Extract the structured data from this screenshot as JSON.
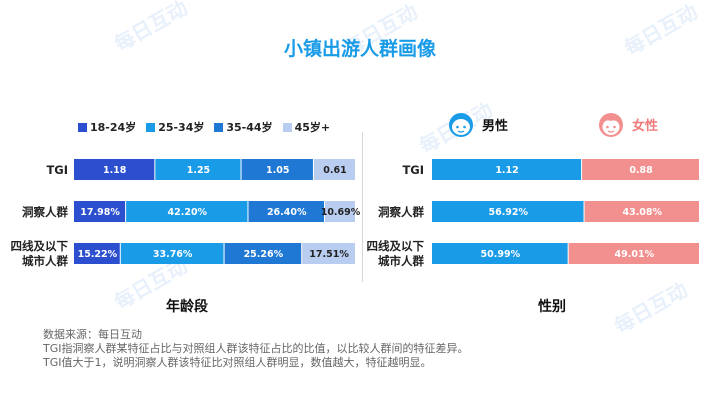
{
  "title": "小镇出游人群画像",
  "colors": {
    "age": [
      "#2b4fcf",
      "#1a9be8",
      "#1f78d4",
      "#b9cdf0"
    ],
    "male": "#1a9be8",
    "female": "#f28f8f",
    "title": "#1a9be8"
  },
  "chart_data": [
    {
      "type": "bar",
      "stacked": true,
      "orientation": "horizontal",
      "xlabel": "年龄段",
      "categories": [
        "TGI",
        "洞察人群",
        "四线及以下城市人群"
      ],
      "legend": [
        "18-24岁",
        "25-34岁",
        "35-44岁",
        "45岁+"
      ],
      "series": [
        {
          "name": "18-24岁",
          "values": [
            1.18,
            17.98,
            15.22
          ],
          "labels": [
            "1.18",
            "17.98%",
            "15.22%"
          ]
        },
        {
          "name": "25-34岁",
          "values": [
            1.25,
            42.2,
            33.76
          ],
          "labels": [
            "1.25",
            "42.20%",
            "33.76%"
          ]
        },
        {
          "name": "35-44岁",
          "values": [
            1.05,
            26.4,
            25.26
          ],
          "labels": [
            "1.05",
            "26.40%",
            "25.26%"
          ]
        },
        {
          "name": "45岁+",
          "values": [
            0.61,
            10.69,
            17.51
          ],
          "labels": [
            "0.61",
            "10.69%",
            "17.51%"
          ]
        }
      ]
    },
    {
      "type": "bar",
      "stacked": true,
      "orientation": "horizontal",
      "xlabel": "性别",
      "categories": [
        "TGI",
        "洞察人群",
        "四线及以下城市人群"
      ],
      "legend": [
        "男性",
        "女性"
      ],
      "series": [
        {
          "name": "男性",
          "values": [
            1.12,
            56.92,
            50.99
          ],
          "labels": [
            "1.12",
            "56.92%",
            "50.99%"
          ]
        },
        {
          "name": "女性",
          "values": [
            0.88,
            43.08,
            49.01
          ],
          "labels": [
            "0.88",
            "43.08%",
            "49.01%"
          ]
        }
      ]
    }
  ],
  "row_labels": {
    "tgi": "TGI",
    "insight": "洞察人群",
    "city_line1": "四线及以下",
    "city_line2": "城市人群"
  },
  "footnote": {
    "line1": "数据来源：每日互动",
    "line2": "TGI指洞察人群某特征占比与对照组人群该特征占比的比值，以比较人群间的特征差异。",
    "line3": "TGI值大于1，说明洞察人群该特征比对照组人群明显，数值越大，特征越明显。"
  },
  "watermark": "每日互动"
}
